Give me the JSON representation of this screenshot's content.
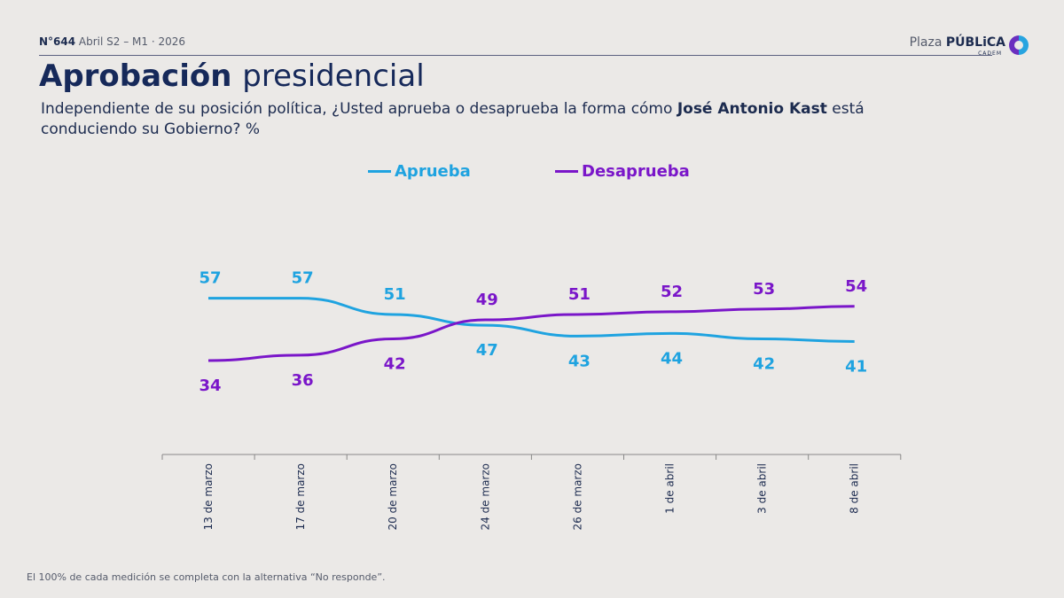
{
  "header": {
    "issue_number": "N°644",
    "issue_detail": "Abril S2 – M1 · 2026",
    "logo_light": "Plaza",
    "logo_bold": "PÚBLiCA",
    "logo_sub": "CADEM"
  },
  "title": {
    "bold": "Aprobación",
    "regular": "presidencial"
  },
  "question": {
    "before": "Independiente de su posición política, ¿Usted aprueba o desaprueba la forma cómo ",
    "name": "José Antonio Kast",
    "after": " está conduciendo su Gobierno? %"
  },
  "footnote": "El 100% de cada medición se completa con la alternativa “No responde”.",
  "chart_data": {
    "type": "line",
    "categories": [
      "13 de marzo",
      "17 de marzo",
      "20 de marzo",
      "24 de marzo",
      "26 de marzo",
      "1 de abril",
      "3 de abril",
      "8 de abril"
    ],
    "series": [
      {
        "name": "Aprueba",
        "color": "#1fa3e0",
        "values": [
          57,
          57,
          51,
          47,
          43,
          44,
          42,
          41
        ]
      },
      {
        "name": "Desaprueba",
        "color": "#7a16c9",
        "values": [
          34,
          36,
          42,
          49,
          51,
          52,
          53,
          54
        ]
      }
    ],
    "legend": "top-center",
    "grid": false
  }
}
